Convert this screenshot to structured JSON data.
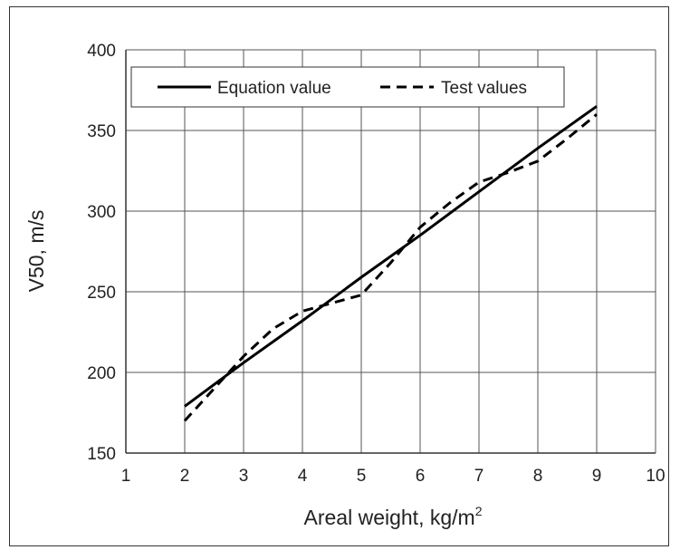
{
  "chart_data": {
    "type": "line",
    "title": "",
    "xlabel": "Areal weight, kg/m",
    "xlabel_sup": "2",
    "ylabel": "V50, m/s",
    "xlim": [
      1,
      10
    ],
    "ylim": [
      150,
      400
    ],
    "x_ticks": [
      "1",
      "2",
      "3",
      "4",
      "5",
      "6",
      "7",
      "8",
      "9",
      "10"
    ],
    "y_ticks": [
      "150",
      "200",
      "250",
      "300",
      "350",
      "400"
    ],
    "grid": true,
    "legend_position": "top",
    "series": [
      {
        "name": "Equation value",
        "style": "solid",
        "color": "#000000",
        "x": [
          2,
          3,
          4,
          5,
          6,
          7,
          8,
          9
        ],
        "y": [
          179,
          206,
          232,
          259,
          285,
          312,
          339,
          365
        ]
      },
      {
        "name": "Test values",
        "style": "dashed",
        "color": "#000000",
        "x": [
          2,
          2.5,
          3,
          3.5,
          4,
          4.5,
          5,
          5.5,
          6,
          6.5,
          7,
          7.5,
          8,
          8.5,
          9
        ],
        "y": [
          170,
          190,
          210,
          227,
          238,
          243,
          248,
          268,
          290,
          305,
          318,
          324,
          331,
          345,
          360
        ]
      }
    ]
  }
}
